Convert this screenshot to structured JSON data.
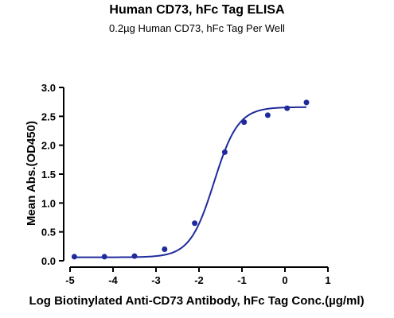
{
  "chart_data": {
    "type": "scatter",
    "title": "Human CD73, hFc Tag ELISA",
    "subtitle": "0.2µg Human CD73, hFc Tag Per Well",
    "xlabel": "Log Biotinylated Anti-CD73 Antibody, hFc Tag Conc.(µg/ml)",
    "ylabel": "Mean Abs.(OD450)",
    "xlim": [
      -5,
      1
    ],
    "ylim": [
      0,
      3.0
    ],
    "xticks": [
      "-5",
      "-4",
      "-3",
      "-2",
      "-1",
      "0",
      "1"
    ],
    "yticks": [
      "0.0",
      "0.5",
      "1.0",
      "1.5",
      "2.0",
      "2.5",
      "3.0"
    ],
    "grid": false,
    "legend": "none",
    "series": [
      {
        "points": [
          {
            "x": -4.9,
            "y": 0.07
          },
          {
            "x": -4.2,
            "y": 0.07
          },
          {
            "x": -3.5,
            "y": 0.08
          },
          {
            "x": -2.8,
            "y": 0.2
          },
          {
            "x": -2.1,
            "y": 0.65
          },
          {
            "x": -1.4,
            "y": 1.88
          },
          {
            "x": -0.95,
            "y": 2.4
          },
          {
            "x": -0.4,
            "y": 2.52
          },
          {
            "x": 0.05,
            "y": 2.64
          },
          {
            "x": 0.5,
            "y": 2.74
          }
        ],
        "fit": {
          "model": "4PL",
          "bottom": 0.06,
          "top": 2.66,
          "logEC50": -1.65,
          "hillslope": 1.55,
          "x_range": [
            -4.9,
            0.5
          ]
        }
      }
    ],
    "colors": {
      "series": "#1f2a9c",
      "axis": "#000000"
    }
  }
}
